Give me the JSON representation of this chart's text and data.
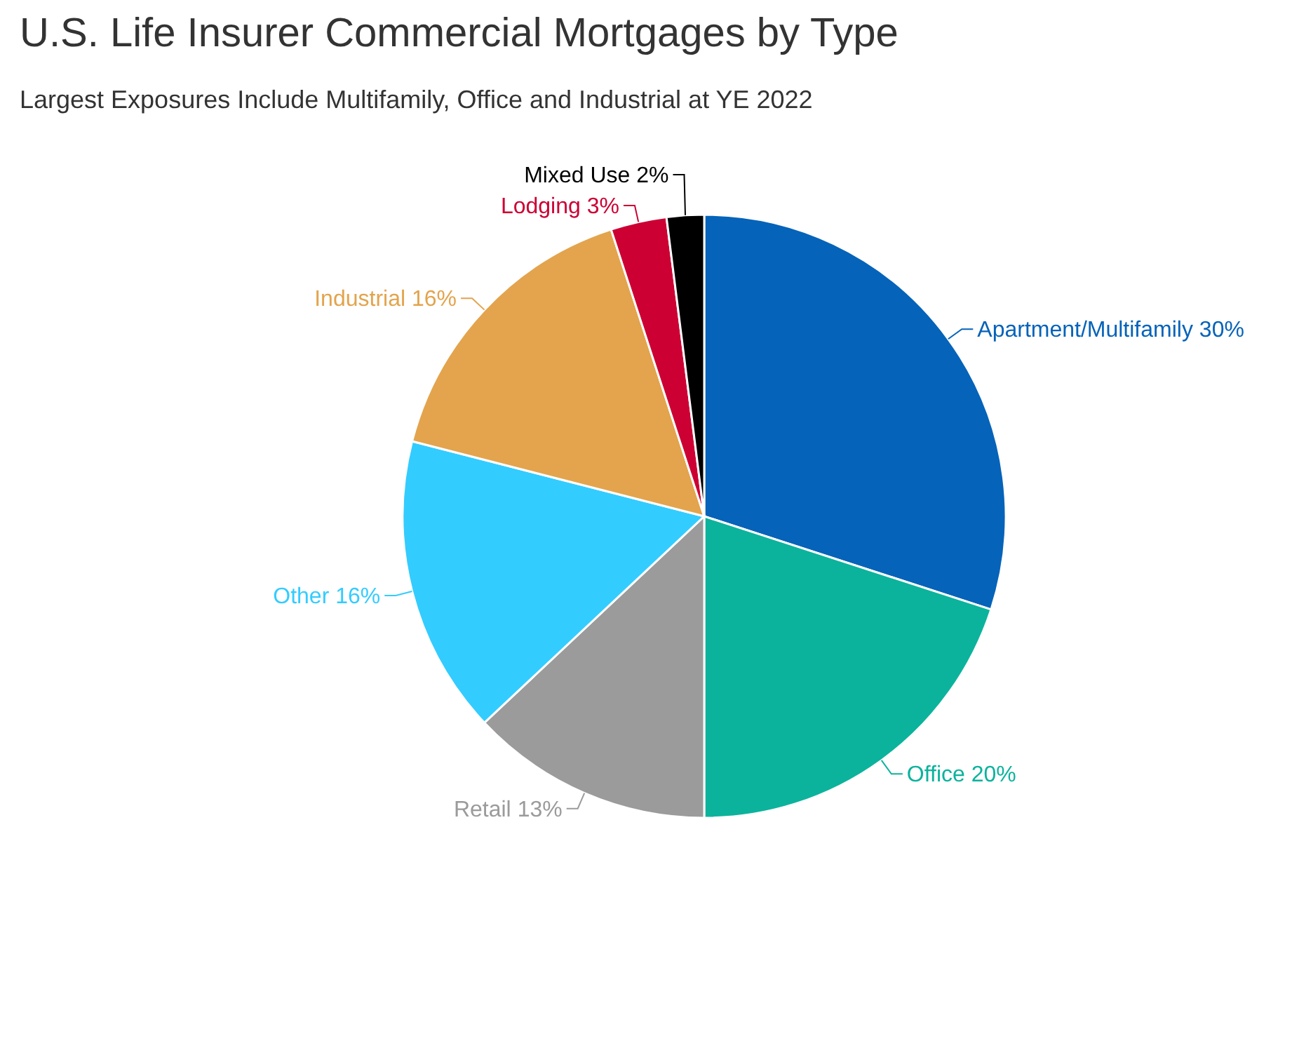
{
  "chart_data": {
    "type": "pie",
    "title": "U.S. Life Insurer Commercial Mortgages by Type",
    "subtitle": "Largest Exposures Include Multifamily, Office and Industrial at YE 2022",
    "categories": [
      "Apartment/Multifamily",
      "Office",
      "Retail ",
      "Other",
      "Industrial",
      "Lodging",
      "Mixed Use"
    ],
    "values": [
      30,
      20,
      13,
      16,
      16,
      3,
      2
    ],
    "value_labels": [
      "30%",
      "20%",
      "13%",
      "16%",
      "16%",
      "3%",
      "2%"
    ],
    "colors": [
      "#0563b9",
      "#0bb39c",
      "#9b9b9b",
      "#33ccff",
      "#e3a44d",
      "#cc0033",
      "#000000"
    ]
  }
}
